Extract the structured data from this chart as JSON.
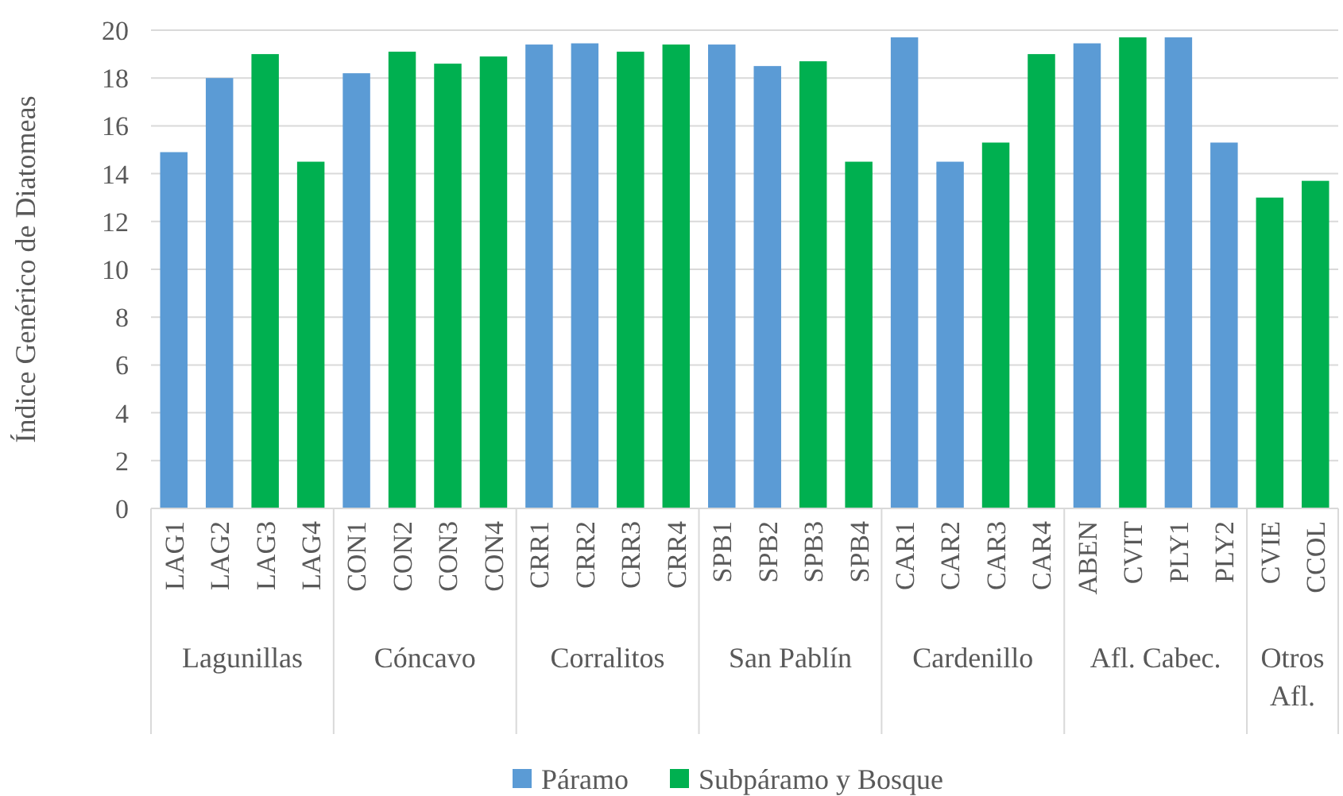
{
  "chart_data": {
    "type": "bar",
    "ylabel": "Índice Genérico de Diatomeas",
    "categories": [
      "LAG1",
      "LAG2",
      "LAG3",
      "LAG4",
      "CON1",
      "CON2",
      "CON3",
      "CON4",
      "CRR1",
      "CRR2",
      "CRR3",
      "CRR4",
      "SPB1",
      "SPB2",
      "SPB3",
      "SPB4",
      "CAR1",
      "CAR2",
      "CAR3",
      "CAR4",
      "ABEN",
      "CVIT",
      "PLY1",
      "PLY2",
      "CVIE",
      "CCOL"
    ],
    "series": [
      {
        "name": "Páramo",
        "color": "#5b9bd5",
        "values": [
          14.9,
          18.0,
          null,
          null,
          18.2,
          null,
          null,
          null,
          19.4,
          19.45,
          null,
          null,
          19.4,
          18.5,
          null,
          null,
          19.7,
          14.5,
          null,
          null,
          19.45,
          null,
          19.7,
          15.3,
          null,
          null
        ]
      },
      {
        "name": "Subpáramo y Bosque",
        "color": "#00b050",
        "values": [
          null,
          null,
          19.0,
          14.5,
          null,
          19.1,
          18.6,
          18.9,
          null,
          null,
          19.1,
          19.4,
          null,
          null,
          18.7,
          14.5,
          null,
          null,
          15.3,
          19.0,
          null,
          19.7,
          null,
          null,
          13.0,
          13.7
        ]
      }
    ],
    "annotations": [
      "Lagunillas",
      "Cóncavo",
      "Corralitos",
      "San Pablín",
      "Cardenillo",
      "Afl. Cabec.",
      "Otros Afl."
    ],
    "ylim": [
      0,
      20
    ],
    "yticks": [
      0,
      2,
      4,
      6,
      8,
      10,
      12,
      14,
      16,
      18,
      20
    ],
    "grid": "y",
    "legend": "bottom"
  }
}
